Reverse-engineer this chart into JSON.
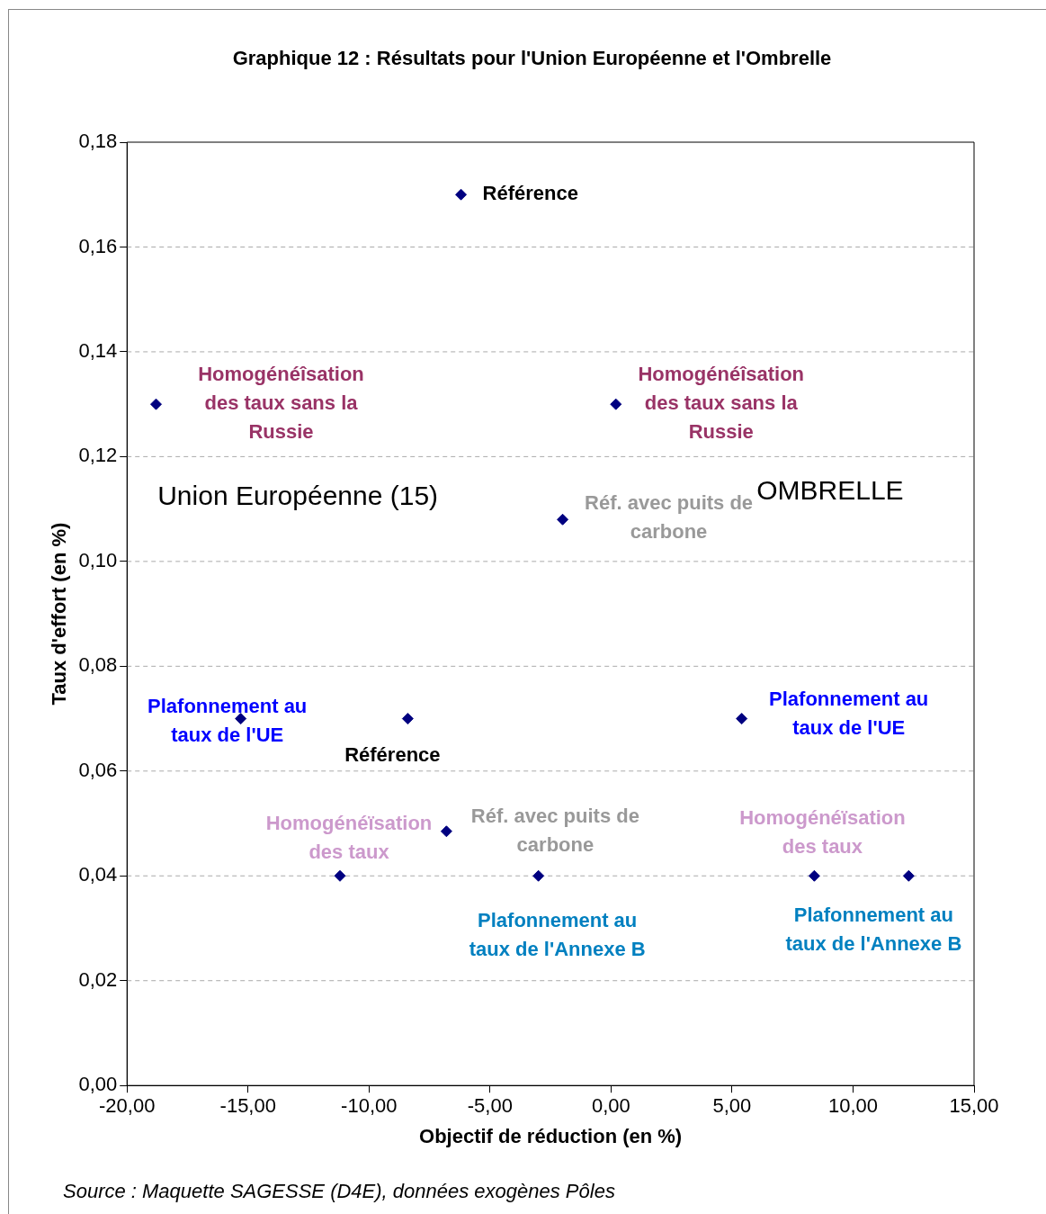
{
  "chart_data": {
    "type": "scatter",
    "title": "Graphique 12 : Résultats pour l'Union Européenne et l'Ombrelle",
    "xlabel": "Objectif de réduction (en %)",
    "ylabel": "Taux d'effort (en %)",
    "x": [
      -6.2,
      -18.8,
      0.2,
      -2.0,
      -15.3,
      -8.4,
      5.4,
      -6.8,
      -11.2,
      -3.0,
      8.4,
      12.3
    ],
    "series": [
      {
        "color": "#000080",
        "values": [
          0.17,
          0.13,
          0.13,
          0.108,
          0.07,
          0.07,
          0.07,
          0.0485,
          0.04,
          0.04,
          0.04,
          0.04
        ]
      }
    ],
    "marker": "diamond",
    "grid": "y",
    "legend": false,
    "xlim": [
      -20,
      15
    ],
    "xticks": [
      {
        "value": -20,
        "label": "-20,00"
      },
      {
        "value": -15,
        "label": "-15,00"
      },
      {
        "value": -10,
        "label": "-10,00"
      },
      {
        "value": -5,
        "label": "-5,00"
      },
      {
        "value": 0,
        "label": "0,00"
      },
      {
        "value": 5,
        "label": "5,00"
      },
      {
        "value": 10,
        "label": "10,00"
      },
      {
        "value": 15,
        "label": "15,00"
      }
    ],
    "ylim": [
      0,
      0.18
    ],
    "yticks": [
      {
        "value": 0,
        "label": "0,00"
      },
      {
        "value": 0.02,
        "label": "0,02"
      },
      {
        "value": 0.04,
        "label": "0,04"
      },
      {
        "value": 0.06,
        "label": "0,06"
      },
      {
        "value": 0.08,
        "label": "0,08"
      },
      {
        "value": 0.1,
        "label": "0,10"
      },
      {
        "value": 0.12,
        "label": "0,12"
      },
      {
        "value": 0.14,
        "label": "0,14"
      },
      {
        "value": 0.16,
        "label": "0,16"
      },
      {
        "value": 0.18,
        "label": "0,18"
      }
    ],
    "annotations": [
      {
        "text": "Référence",
        "x": -6.2,
        "y": 0.17
      },
      {
        "text": "Homogénéîsation des taux sans la Russie",
        "x": -18.8,
        "y": 0.13
      },
      {
        "text": "Homogénéîsation des taux sans la Russie",
        "x": 0.2,
        "y": 0.13
      },
      {
        "text": "Réf. avec puits de carbone",
        "x": -2.0,
        "y": 0.108
      },
      {
        "text": "Plafonnement au taux de l'UE",
        "x": -15.3,
        "y": 0.07
      },
      {
        "text": "Référence",
        "x": -8.4,
        "y": 0.07
      },
      {
        "text": "Plafonnement au taux de l'UE",
        "x": 5.4,
        "y": 0.07
      },
      {
        "text": "Réf. avec puits de carbone",
        "x": -6.8,
        "y": 0.0485
      },
      {
        "text": "Homogénéïsation des taux",
        "x": -11.2,
        "y": 0.04
      },
      {
        "text": "Plafonnement au taux de l'Annexe B",
        "x": -3.0,
        "y": 0.04
      },
      {
        "text": "Homogénéïsation des taux",
        "x": 8.4,
        "y": 0.04
      },
      {
        "text": "Plafonnement au taux de l'Annexe B",
        "x": 12.3,
        "y": 0.04
      },
      "Union Européenne (15)",
      "OMBRELLE",
      "Source : Maquette SAGESSE (D4E), données exogènes Pôles"
    ]
  }
}
